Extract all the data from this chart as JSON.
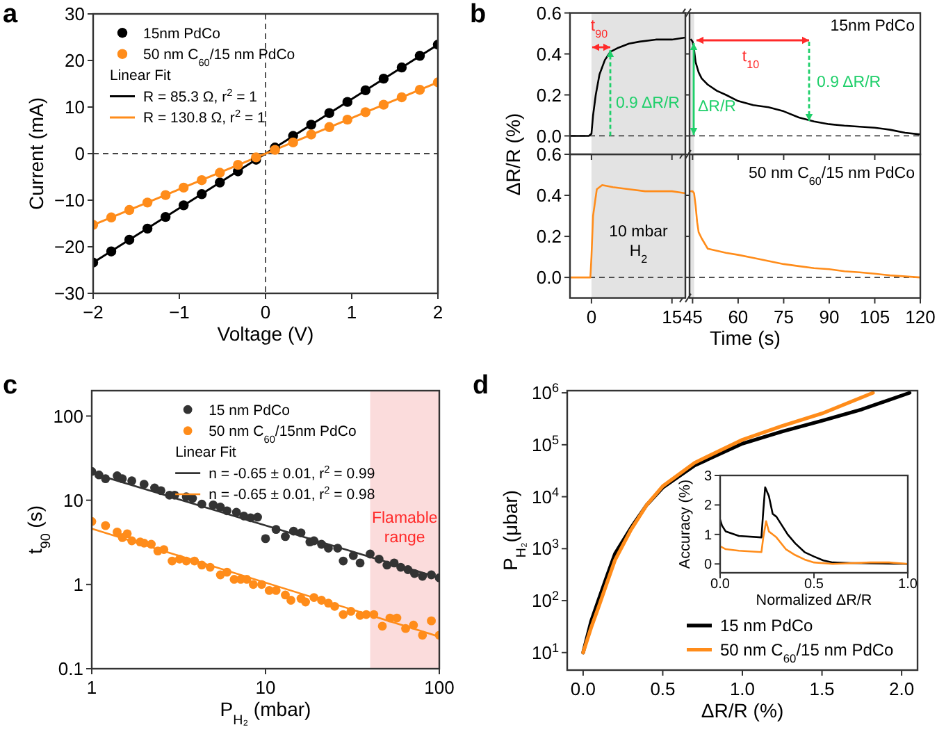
{
  "chart_data": [
    {
      "type": "scatter",
      "title": "a",
      "xlabel": "Voltage (V)",
      "ylabel": "Current (mA)",
      "marker": "circle",
      "legend": "top left",
      "annotations": [
        "Linear Fit"
      ],
      "x": [
        -2,
        -1.79,
        -1.58,
        -1.37,
        -1.16,
        -0.95,
        -0.74,
        -0.53,
        -0.32,
        -0.11,
        0.11,
        0.32,
        0.53,
        0.74,
        0.95,
        1.16,
        1.37,
        1.58,
        1.79,
        2
      ],
      "series": [
        {
          "name": "15nm PdCo",
          "color": "#000000",
          "values": [
            -23.4,
            -21,
            -18.5,
            -16.1,
            -13.6,
            -11.1,
            -8.7,
            -6.2,
            -3.8,
            -1.3,
            1.3,
            3.8,
            6.2,
            8.7,
            11.1,
            13.6,
            16.1,
            18.5,
            21,
            23.4
          ]
        },
        {
          "name": "50 nm C$_{60}$/15 nm PdCo",
          "color": "#ff8c1a",
          "values": [
            -15.3,
            -13.7,
            -12.1,
            -10.5,
            -8.9,
            -7.3,
            -5.7,
            -4.1,
            -2.4,
            -0.8,
            0.8,
            2.4,
            4.1,
            5.7,
            7.3,
            8.9,
            10.5,
            12.1,
            13.7,
            15.3
          ]
        },
        {
          "name": "R = 85.3 Ω, r$^{2}$ = 1",
          "type": "line",
          "marker": "none",
          "color": "#000000",
          "x": [
            -2,
            2
          ],
          "values": [
            -23.4,
            23.4
          ]
        },
        {
          "name": "R = 130.8 Ω, r$^{2}$ = 1",
          "type": "line",
          "marker": "none",
          "color": "#ff8c1a",
          "x": [
            -2,
            2
          ],
          "values": [
            -15.3,
            15.3
          ]
        }
      ],
      "xlim": [
        -2,
        2
      ],
      "ylim": [
        -30,
        30
      ],
      "xticks": [
        {
          "value": -2,
          "label": "−2"
        },
        {
          "value": -1,
          "label": "−1"
        },
        0,
        1,
        2
      ],
      "yticks": [
        {
          "value": -30,
          "label": "−30"
        },
        {
          "value": -20,
          "label": "−20"
        },
        {
          "value": -10,
          "label": "−10"
        },
        0,
        10,
        20,
        30
      ],
      "ref_lines": [
        {
          "axis": "x",
          "value": 0,
          "line_style": "dashed"
        },
        {
          "axis": "y",
          "value": 0,
          "line_style": "dashed"
        }
      ]
    },
    {
      "type": "line",
      "title": "b",
      "ylabel": "ΔR/R (%)",
      "tick_labels": "y",
      "annotations": [
        "t$_{90}$",
        {
          "text": "0.9 ΔR/R",
          "x": 3.5,
          "y": 0.41
        }
      ],
      "x": [
        -4,
        -2,
        -0.5,
        0,
        0.3,
        0.8,
        1.5,
        2.5,
        3.5,
        5,
        7,
        9,
        12,
        15,
        17.5
      ],
      "series": [
        {
          "color": "#000000",
          "values": [
            0,
            0,
            0,
            0.01,
            0.1,
            0.2,
            0.3,
            0.37,
            0.41,
            0.43,
            0.45,
            0.46,
            0.47,
            0.47,
            0.48
          ]
        }
      ],
      "xlim": [
        -4,
        17.5
      ],
      "ylim": [
        -0.09,
        0.6
      ],
      "xticks": [
        0,
        15
      ],
      "yticks": [
        {
          "value": 0,
          "label": "0.0"
        },
        {
          "value": 0.2,
          "label": "0.2"
        },
        {
          "value": 0.4,
          "label": "0.4"
        },
        {
          "value": 0.6,
          "label": "0.6"
        }
      ],
      "bands": [
        {
          "axis": "x",
          "from": 0,
          "to": 17.5,
          "color": "#e3e3e3"
        }
      ],
      "ref_lines": [
        {
          "axis": "y",
          "value": 0,
          "line_style": "dashed"
        }
      ]
    },
    {
      "type": "line",
      "tick_labels": false,
      "annotations": [
        "ΔR/R",
        "t$_{10}$",
        {
          "text": "0.9 ΔR/R",
          "x": 85,
          "y": 0.07
        }
      ],
      "x": [
        44.5,
        45,
        45.5,
        46,
        47,
        48,
        50,
        53,
        56,
        60,
        65,
        70,
        75,
        80,
        85,
        90,
        95,
        100,
        105,
        110,
        115,
        120
      ],
      "series": [
        {
          "name": "15nm PdCo",
          "color": "#000000",
          "values": [
            0.47,
            0.46,
            0.42,
            0.36,
            0.31,
            0.28,
            0.25,
            0.22,
            0.2,
            0.17,
            0.15,
            0.14,
            0.12,
            0.09,
            0.07,
            0.057,
            0.05,
            0.045,
            0.04,
            0.03,
            0.015,
            0.007
          ]
        }
      ],
      "xlim": [
        44,
        120
      ],
      "ylim": [
        -0.09,
        0.6
      ],
      "xticks": [
        45,
        60,
        75,
        90,
        105,
        120
      ],
      "yticks": [
        {
          "value": 0,
          "label": null
        },
        {
          "value": 0.2,
          "label": null
        },
        {
          "value": 0.4,
          "label": null
        },
        {
          "value": 0.6,
          "label": null
        }
      ],
      "bands": [
        {
          "axis": "x",
          "from": 44,
          "to": 45.5,
          "color": "#e3e3e3"
        }
      ],
      "ref_lines": [
        {
          "axis": "y",
          "value": 0,
          "line_style": "dashed"
        }
      ]
    },
    {
      "type": "line",
      "x": [
        -4,
        -0.2,
        0,
        0.3,
        1,
        2,
        4,
        7,
        10,
        13,
        15,
        17.5
      ],
      "series": [
        {
          "color": "#ff8c1a",
          "values": [
            0,
            0,
            0.1,
            0.3,
            0.43,
            0.45,
            0.44,
            0.43,
            0.42,
            0.42,
            0.42,
            0.41
          ]
        }
      ],
      "xlim": [
        -4,
        17.5
      ],
      "ylim": [
        -0.1,
        0.6
      ],
      "xticks": [
        0,
        15
      ],
      "yticks": [
        {
          "value": 0,
          "label": "0.0"
        },
        {
          "value": 0.2,
          "label": "0.2"
        },
        {
          "value": 0.4,
          "label": "0.4"
        },
        {
          "value": 0.6,
          "label": "0.6"
        }
      ],
      "bands": [
        {
          "axis": "x",
          "from": 0,
          "to": 17.5,
          "color": "#e3e3e3",
          "label": "10 mbar H$_{2}$"
        }
      ],
      "ref_lines": [
        {
          "axis": "y",
          "value": 0,
          "line_style": "dashed"
        }
      ]
    },
    {
      "type": "line",
      "xlabel": "Time (s)",
      "tick_labels": "x",
      "x": [
        44.5,
        45,
        45.5,
        46,
        46.5,
        47,
        48,
        50,
        53,
        56,
        60,
        65,
        70,
        75,
        80,
        85,
        90,
        95,
        100,
        105,
        110,
        115,
        120
      ],
      "series": [
        {
          "name": "50 nm C$_{60}$/15 nm PdCo",
          "color": "#ff8c1a",
          "values": [
            0.42,
            0.42,
            0.41,
            0.35,
            0.27,
            0.22,
            0.19,
            0.14,
            0.13,
            0.12,
            0.11,
            0.095,
            0.08,
            0.065,
            0.055,
            0.045,
            0.04,
            0.03,
            0.025,
            0.018,
            0.01,
            0.005,
            0
          ]
        }
      ],
      "xlim": [
        44,
        120
      ],
      "ylim": [
        -0.1,
        0.6
      ],
      "xticks": [
        45,
        60,
        75,
        90,
        105,
        120
      ],
      "yticks": [
        {
          "value": 0,
          "label": null
        },
        {
          "value": 0.2,
          "label": null
        },
        {
          "value": 0.4,
          "label": null
        },
        {
          "value": 0.6,
          "label": null
        }
      ],
      "bands": [
        {
          "axis": "x",
          "from": 44,
          "to": 45.5,
          "color": "#e3e3e3"
        }
      ],
      "ref_lines": [
        {
          "axis": "y",
          "value": 0,
          "line_style": "dashed"
        }
      ]
    },
    {
      "type": "scatter",
      "title": "c",
      "xlabel": "P$_{H₂}$ (mbar)",
      "ylabel": "t$_{90}$ (s)",
      "log": "xy",
      "marker": "circle",
      "legend": "top right",
      "annotations": [
        "Linear Fit"
      ],
      "series": [
        {
          "name": "15 nm PdCo",
          "color": "#333333",
          "x": [
            1,
            1.1,
            1.2,
            1.4,
            1.5,
            1.7,
            2,
            2.3,
            2.5,
            2.8,
            3,
            3.5,
            3.8,
            4.3,
            5,
            5.5,
            6,
            6.8,
            7.5,
            8.2,
            9,
            10,
            11.5,
            13,
            14.5,
            16,
            18,
            19,
            21,
            23,
            26,
            28,
            32,
            35,
            40,
            45,
            50,
            55,
            60,
            66,
            72,
            80,
            90,
            100
          ],
          "values": [
            22,
            20,
            18,
            19.5,
            18,
            17,
            15.5,
            14,
            13,
            11.5,
            11.5,
            11,
            10.5,
            9,
            8.8,
            8.3,
            7.5,
            7.2,
            6.5,
            6.2,
            6.3,
            3.5,
            4.5,
            3.7,
            4.3,
            4.1,
            3.2,
            3.3,
            3,
            2.7,
            2.7,
            1.9,
            2.2,
            1.8,
            2.3,
            2,
            1.7,
            1.8,
            1.6,
            1.5,
            1.35,
            1.25,
            1.3,
            1.2
          ]
        },
        {
          "name": "50 nm C$_{60}$/15nm PdCo",
          "color": "#ff8c1a",
          "x": [
            1,
            1.2,
            1.4,
            1.5,
            1.6,
            1.7,
            1.9,
            2,
            2.2,
            2.4,
            2.6,
            2.9,
            3.2,
            3.5,
            3.9,
            4.3,
            4.8,
            5.5,
            6,
            6.6,
            7.2,
            7.8,
            8.5,
            9.5,
            10.5,
            11.5,
            13,
            14,
            16,
            17,
            19,
            21,
            23,
            25,
            28,
            31,
            35,
            38,
            42,
            47,
            52,
            57,
            64,
            71,
            80,
            90,
            100
          ],
          "values": [
            5.6,
            5,
            4.2,
            3.6,
            4,
            3.3,
            3.2,
            3.1,
            3,
            2.5,
            2.6,
            1.9,
            2,
            1.9,
            1.9,
            1.7,
            1.6,
            1.3,
            1.4,
            1.15,
            1.15,
            1.15,
            1,
            1,
            0.85,
            0.85,
            0.75,
            0.65,
            0.68,
            0.62,
            0.7,
            0.65,
            0.6,
            0.55,
            0.44,
            0.48,
            0.43,
            0.44,
            0.44,
            0.32,
            0.4,
            0.4,
            0.3,
            0.33,
            0.25,
            0.37,
            0.25
          ]
        },
        {
          "name": "n = -0.65 ± 0.01, r$^{2}$ = 0.99",
          "type": "line",
          "marker": "none",
          "color": "#333333",
          "x": [
            1,
            100
          ],
          "values": [
            21,
            1.2
          ]
        },
        {
          "name": "n = -0.65 ± 0.01, r$^{2}$ = 0.98",
          "type": "line",
          "marker": "none",
          "color": "#ff8c1a",
          "x": [
            1,
            100
          ],
          "values": [
            4.6,
            0.24
          ]
        }
      ],
      "xlim": [
        1,
        100
      ],
      "ylim": [
        0.1,
        200
      ],
      "xticks": [
        1,
        10,
        100
      ],
      "yticks": [
        0.1,
        1,
        10,
        100
      ],
      "bands": [
        {
          "axis": "x",
          "from": 40,
          "to": 100,
          "color": "#fbdcdc",
          "label": "Flamable range"
        }
      ]
    },
    {
      "type": "line",
      "title": "d",
      "xlabel": "ΔR/R (%)",
      "ylabel": "P$_{H₂}$(μbar)",
      "log": "y",
      "legend": "bottom right",
      "series": [
        {
          "name": "15 nm PdCo",
          "color": "#000000",
          "x": [
            0,
            0.05,
            0.1,
            0.15,
            0.2,
            0.3,
            0.4,
            0.5,
            0.7,
            1,
            1.25,
            1.5,
            1.75,
            2.05
          ],
          "values": [
            10,
            40,
            110,
            300,
            800,
            2500,
            7000,
            15000,
            40000,
            105000,
            180000,
            290000,
            480000,
            1000000
          ]
        },
        {
          "name": "50 nm C$_{60}$/15 nm PdCo",
          "color": "#ff8c1a",
          "x": [
            0,
            0.05,
            0.1,
            0.15,
            0.2,
            0.3,
            0.4,
            0.5,
            0.7,
            1,
            1.25,
            1.5,
            1.82
          ],
          "values": [
            10,
            30,
            80,
            220,
            600,
            2300,
            7000,
            16000,
            45000,
            125000,
            230000,
            400000,
            1000000
          ]
        }
      ],
      "xlim": [
        -0.1,
        2.1
      ],
      "ylim": [
        4.6,
        1100000
      ],
      "xticks": [
        {
          "value": 0,
          "label": "0.0"
        },
        {
          "value": 0.5,
          "label": "0.5"
        },
        {
          "value": 1,
          "label": "1.0"
        },
        {
          "value": 1.5,
          "label": "1.5"
        },
        {
          "value": 2,
          "label": "2.0"
        }
      ],
      "yticks": [
        {
          "value": 10,
          "label": "10$^{1}$"
        },
        {
          "value": 100,
          "label": "10$^{2}$"
        },
        {
          "value": 1000,
          "label": "10$^{3}$"
        },
        {
          "value": 10000,
          "label": "10$^{4}$"
        },
        {
          "value": 100000,
          "label": "10$^{5}$"
        },
        {
          "value": 1000000,
          "label": "10$^{6}$"
        }
      ]
    },
    {
      "type": "line",
      "xlabel": "Normalized ΔR/R",
      "ylabel": "Accuracy (%)",
      "series": [
        {
          "color": "#000000",
          "x": [
            0,
            0.01,
            0.03,
            0.1,
            0.22,
            0.23,
            0.24,
            0.26,
            0.28,
            0.3,
            0.33,
            0.36,
            0.4,
            0.45,
            0.5,
            0.55,
            0.6,
            0.7,
            1
          ],
          "values": [
            1.5,
            1.3,
            1.1,
            0.95,
            0.9,
            1.8,
            2.6,
            2.3,
            1.7,
            1.6,
            1.3,
            1,
            0.7,
            0.4,
            0.25,
            0.12,
            0.05,
            0.03,
            0
          ]
        },
        {
          "color": "#ff8c1a",
          "x": [
            0,
            0.03,
            0.1,
            0.22,
            0.23,
            0.245,
            0.26,
            0.28,
            0.3,
            0.35,
            0.4,
            0.45,
            0.5,
            0.6,
            0.8,
            0.9,
            1
          ],
          "values": [
            0.6,
            0.5,
            0.45,
            0.4,
            0.9,
            1.45,
            1.1,
            1,
            0.9,
            0.5,
            0.3,
            0.15,
            0.05,
            0,
            0.05,
            0.05,
            0
          ]
        }
      ],
      "xlim": [
        0,
        1
      ],
      "ylim": [
        -0.3,
        3
      ],
      "xticks": [
        {
          "value": 0,
          "label": "0.0"
        },
        {
          "value": 0.5,
          "label": "0.5"
        },
        {
          "value": 1,
          "label": "1.0"
        }
      ],
      "yticks": [
        0,
        1,
        2,
        3
      ]
    }
  ]
}
